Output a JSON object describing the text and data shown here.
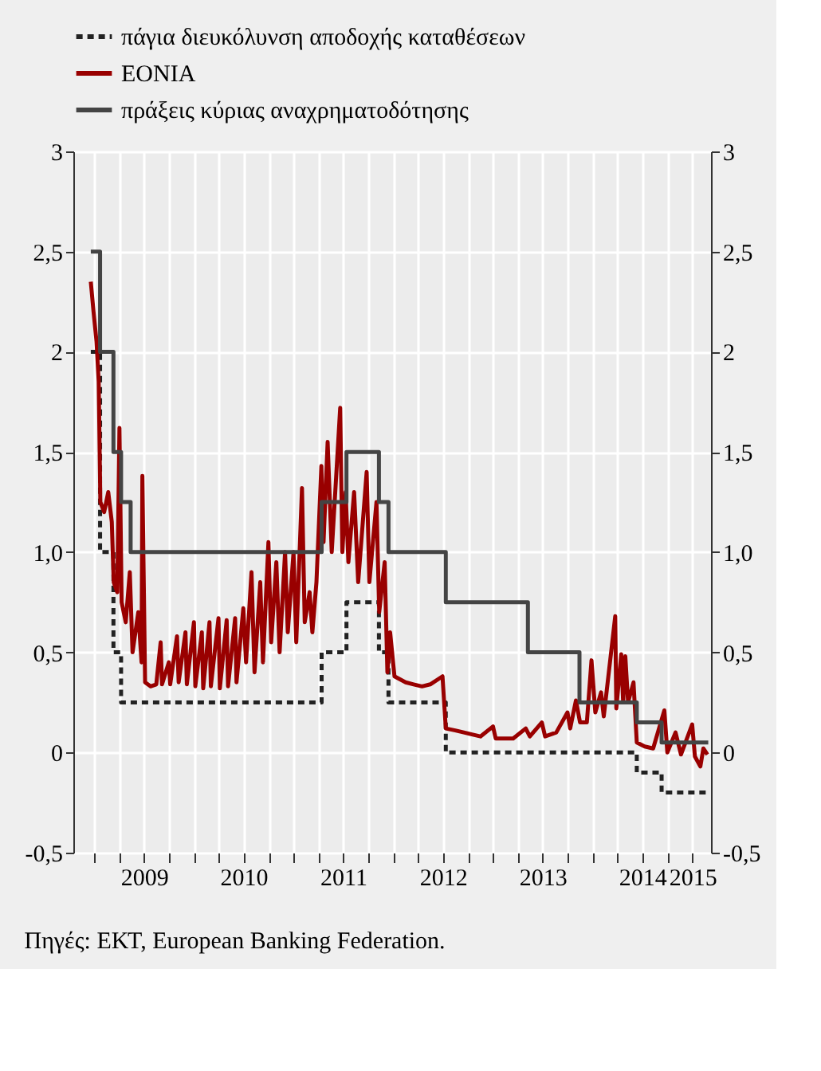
{
  "chart_data": {
    "type": "line",
    "annotations": [
      "Πηγές: ΕΚΤ, European Banking Federation."
    ],
    "xlim": [
      "2008-10-15",
      "2015-03-10"
    ],
    "xticks": [
      {
        "value": "2009-01-01",
        "label": null
      },
      {
        "value": "2009-04-01",
        "label": null
      },
      {
        "value": "2009-07-01",
        "label": "2009"
      },
      {
        "value": "2009-10-01",
        "label": null
      },
      {
        "value": "2010-01-01",
        "label": null
      },
      {
        "value": "2010-04-01",
        "label": null
      },
      {
        "value": "2010-07-01",
        "label": "2010"
      },
      {
        "value": "2010-10-01",
        "label": null
      },
      {
        "value": "2011-01-01",
        "label": null
      },
      {
        "value": "2011-04-01",
        "label": null
      },
      {
        "value": "2011-07-01",
        "label": "2011"
      },
      {
        "value": "2011-10-01",
        "label": null
      },
      {
        "value": "2012-01-01",
        "label": null
      },
      {
        "value": "2012-04-01",
        "label": null
      },
      {
        "value": "2012-07-01",
        "label": "2012"
      },
      {
        "value": "2012-10-01",
        "label": null
      },
      {
        "value": "2013-01-01",
        "label": null
      },
      {
        "value": "2013-04-01",
        "label": null
      },
      {
        "value": "2013-07-01",
        "label": "2013"
      },
      {
        "value": "2013-10-01",
        "label": null
      },
      {
        "value": "2014-01-01",
        "label": null
      },
      {
        "value": "2014-04-01",
        "label": null
      },
      {
        "value": "2014-07-01",
        "label": "2014"
      },
      {
        "value": "2014-10-01",
        "label": null
      },
      {
        "value": "2015-01-01",
        "label": "2015"
      }
    ],
    "ylim": [
      -0.5,
      3
    ],
    "yticks": [
      {
        "value": -0.5,
        "label": "-0,5"
      },
      0,
      {
        "value": 0.5,
        "label": "0,5"
      },
      {
        "value": 1,
        "label": "1,0"
      },
      {
        "value": 1.5,
        "label": "1,5"
      },
      2,
      {
        "value": 2.5,
        "label": "2,5"
      },
      3
    ],
    "y2lim": [
      -0.5,
      3
    ],
    "y2ticks": [
      {
        "value": -0.5,
        "label": "-0,5"
      },
      0,
      {
        "value": 0.5,
        "label": "0,5"
      },
      {
        "value": 1,
        "label": "1,0"
      },
      {
        "value": 1.5,
        "label": "1,5"
      },
      2,
      {
        "value": 2.5,
        "label": "2,5"
      },
      3
    ],
    "grid": true,
    "legend": "top",
    "series": [
      {
        "name": "πάγια διευκόλυνση αποδοχής καταθέσεων",
        "type": "step",
        "color": "#222222",
        "line_style": "dashed",
        "x": [
          "2008-12-18",
          "2009-01-21",
          "2009-03-11",
          "2009-04-08",
          "2011-04-13",
          "2011-07-13",
          "2011-11-09",
          "2011-12-14",
          "2012-07-11",
          "2014-06-11",
          "2014-09-10",
          "2015-02-28"
        ],
        "values": [
          2.0,
          1.0,
          0.5,
          0.25,
          0.5,
          0.75,
          0.5,
          0.25,
          0.0,
          -0.1,
          -0.2,
          -0.2
        ]
      },
      {
        "name": "EONIA",
        "color": "#990000",
        "line_style": "solid",
        "axis": "y2",
        "x": [
          "2008-12-18",
          "2008-12-28",
          "2009-01-08",
          "2009-01-16",
          "2009-01-22",
          "2009-02-05",
          "2009-02-20",
          "2009-03-05",
          "2009-03-12",
          "2009-03-25",
          "2009-04-02",
          "2009-04-10",
          "2009-04-25",
          "2009-05-10",
          "2009-05-20",
          "2009-06-10",
          "2009-06-22",
          "2009-06-25",
          "2009-07-05",
          "2009-07-25",
          "2009-08-15",
          "2009-08-31",
          "2009-09-05",
          "2009-09-30",
          "2009-10-05",
          "2009-10-30",
          "2009-11-05",
          "2009-11-30",
          "2009-12-05",
          "2009-12-31",
          "2010-01-05",
          "2010-01-29",
          "2010-02-03",
          "2010-02-26",
          "2010-03-03",
          "2010-03-31",
          "2010-04-05",
          "2010-04-30",
          "2010-05-05",
          "2010-05-31",
          "2010-06-05",
          "2010-06-30",
          "2010-07-10",
          "2010-07-30",
          "2010-08-10",
          "2010-08-31",
          "2010-09-10",
          "2010-09-30",
          "2010-10-10",
          "2010-10-29",
          "2010-11-10",
          "2010-11-30",
          "2010-12-10",
          "2010-12-31",
          "2011-01-10",
          "2011-01-31",
          "2011-02-10",
          "2011-02-28",
          "2011-03-10",
          "2011-03-25",
          "2011-04-12",
          "2011-04-20",
          "2011-05-05",
          "2011-05-20",
          "2011-06-20",
          "2011-06-28",
          "2011-07-10",
          "2011-07-20",
          "2011-08-10",
          "2011-08-25",
          "2011-09-25",
          "2011-10-05",
          "2011-10-31",
          "2011-11-10",
          "2011-11-30",
          "2011-12-10",
          "2011-12-20",
          "2012-01-05",
          "2012-02-15",
          "2012-03-15",
          "2012-04-15",
          "2012-05-15",
          "2012-06-29",
          "2012-07-11",
          "2012-08-15",
          "2012-09-15",
          "2012-10-15",
          "2012-11-15",
          "2012-12-31",
          "2013-01-10",
          "2013-03-15",
          "2013-04-30",
          "2013-05-15",
          "2013-06-28",
          "2013-07-10",
          "2013-08-20",
          "2013-09-30",
          "2013-10-10",
          "2013-10-31",
          "2013-11-15",
          "2013-12-10",
          "2013-12-27",
          "2014-01-10",
          "2014-01-31",
          "2014-02-10",
          "2014-03-24",
          "2014-03-28",
          "2014-04-15",
          "2014-04-22",
          "2014-04-30",
          "2014-05-10",
          "2014-05-30",
          "2014-06-11",
          "2014-07-10",
          "2014-08-10",
          "2014-09-20",
          "2014-10-01",
          "2014-10-31",
          "2014-11-20",
          "2014-12-31",
          "2015-01-10",
          "2015-01-30",
          "2015-02-10",
          "2015-02-25"
        ],
        "values": [
          2.35,
          2.2,
          2.05,
          1.85,
          1.25,
          1.2,
          1.3,
          1.15,
          0.85,
          0.8,
          1.62,
          0.75,
          0.65,
          0.9,
          0.5,
          0.7,
          0.45,
          1.38,
          0.35,
          0.33,
          0.34,
          0.55,
          0.34,
          0.45,
          0.34,
          0.58,
          0.35,
          0.6,
          0.34,
          0.65,
          0.33,
          0.6,
          0.32,
          0.65,
          0.33,
          0.67,
          0.32,
          0.66,
          0.33,
          0.67,
          0.35,
          0.72,
          0.45,
          0.9,
          0.4,
          0.85,
          0.45,
          1.05,
          0.55,
          0.95,
          0.5,
          1.0,
          0.6,
          1.0,
          0.55,
          1.32,
          0.65,
          0.8,
          0.6,
          0.85,
          1.43,
          1.05,
          1.55,
          1.0,
          1.72,
          1.0,
          1.3,
          0.95,
          1.3,
          0.85,
          1.4,
          0.85,
          1.25,
          0.7,
          0.95,
          0.4,
          0.6,
          0.38,
          0.35,
          0.34,
          0.33,
          0.34,
          0.38,
          0.12,
          0.11,
          0.1,
          0.09,
          0.08,
          0.13,
          0.07,
          0.07,
          0.12,
          0.08,
          0.15,
          0.08,
          0.1,
          0.2,
          0.12,
          0.26,
          0.15,
          0.15,
          0.46,
          0.2,
          0.3,
          0.18,
          0.68,
          0.22,
          0.49,
          0.25,
          0.48,
          0.25,
          0.35,
          0.05,
          0.03,
          0.02,
          0.21,
          0.0,
          0.1,
          -0.01,
          0.14,
          -0.02,
          -0.07,
          0.02,
          -0.01
        ]
      },
      {
        "name": "πράξεις κύριας αναχρηματοδότησης",
        "type": "step",
        "color": "#444444",
        "line_style": "solid",
        "x": [
          "2008-12-18",
          "2009-01-21",
          "2009-03-11",
          "2009-04-08",
          "2009-05-13",
          "2011-04-13",
          "2011-07-13",
          "2011-11-09",
          "2011-12-14",
          "2012-07-11",
          "2013-05-08",
          "2013-11-13",
          "2014-06-11",
          "2014-09-10",
          "2015-02-28"
        ],
        "values": [
          2.5,
          2.0,
          1.5,
          1.25,
          1.0,
          1.25,
          1.5,
          1.25,
          1.0,
          0.75,
          0.5,
          0.25,
          0.15,
          0.05,
          0.05
        ]
      }
    ]
  }
}
